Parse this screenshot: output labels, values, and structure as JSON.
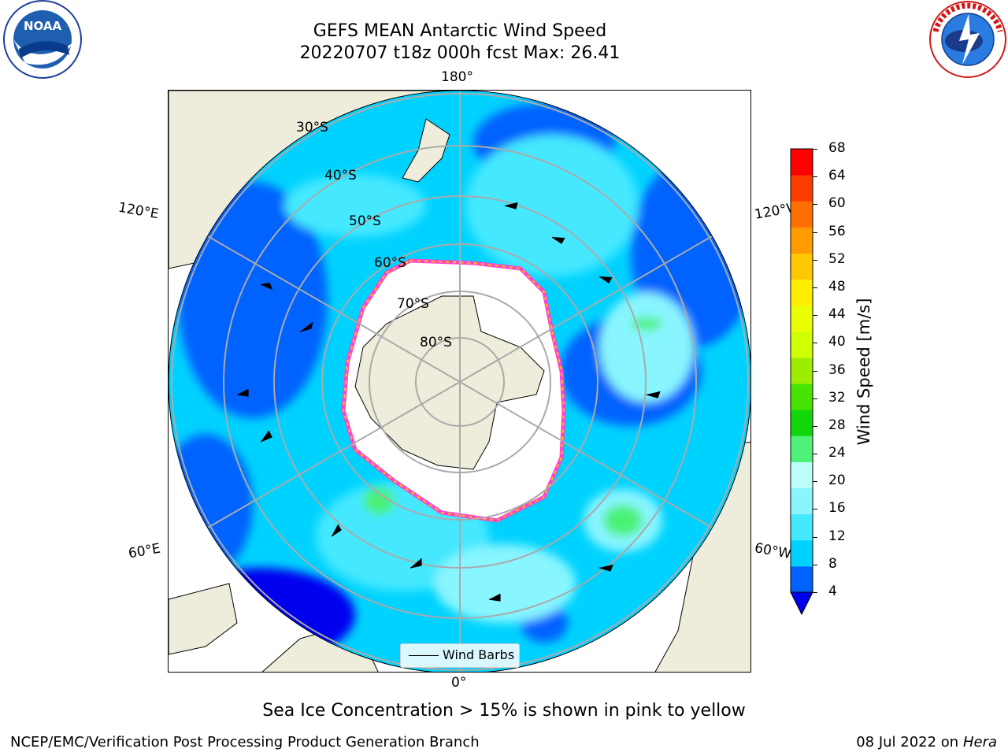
{
  "title_line1": "GEFS MEAN Antarctic Wind Speed",
  "title_line2": "20220707 t18z 000h fcst   Max: 26.41",
  "logos": {
    "left": "NOAA",
    "right": "NATIONAL WEATHER SERVICE"
  },
  "map": {
    "projection": "south polar stereographic",
    "lon_labels": {
      "top": "180°",
      "bottom": "0°",
      "upper_left": "120°E",
      "upper_right": "120°W",
      "lower_left": "60°E",
      "lower_right": "60°W"
    },
    "lat_labels": [
      "30°S",
      "40°S",
      "50°S",
      "60°S",
      "70°S",
      "80°S"
    ],
    "legend_label": "Wind Barbs"
  },
  "colorbar": {
    "label": "Wind Speed [m/s]",
    "ticks": [
      "4",
      "8",
      "12",
      "16",
      "20",
      "24",
      "28",
      "32",
      "36",
      "40",
      "44",
      "48",
      "52",
      "56",
      "60",
      "64",
      "68"
    ],
    "colors": [
      "#0062ff",
      "#00d2ff",
      "#44e8ff",
      "#88f5ff",
      "#bffff9",
      "#4cf176",
      "#12d60c",
      "#47e300",
      "#9ded00",
      "#cfff00",
      "#ecff00",
      "#ffee00",
      "#ffc800",
      "#ff9c00",
      "#ff7000",
      "#ff3c00",
      "#ff0000"
    ],
    "under_color": "#0000ee"
  },
  "caption": "Sea Ice Concentration > 15% is shown in pink to yellow",
  "footer_left": "NCEP/EMC/Verification Post Processing Product Generation Branch",
  "footer_right_prefix": "08 Jul 2022 on ",
  "footer_right_host": "Hera"
}
